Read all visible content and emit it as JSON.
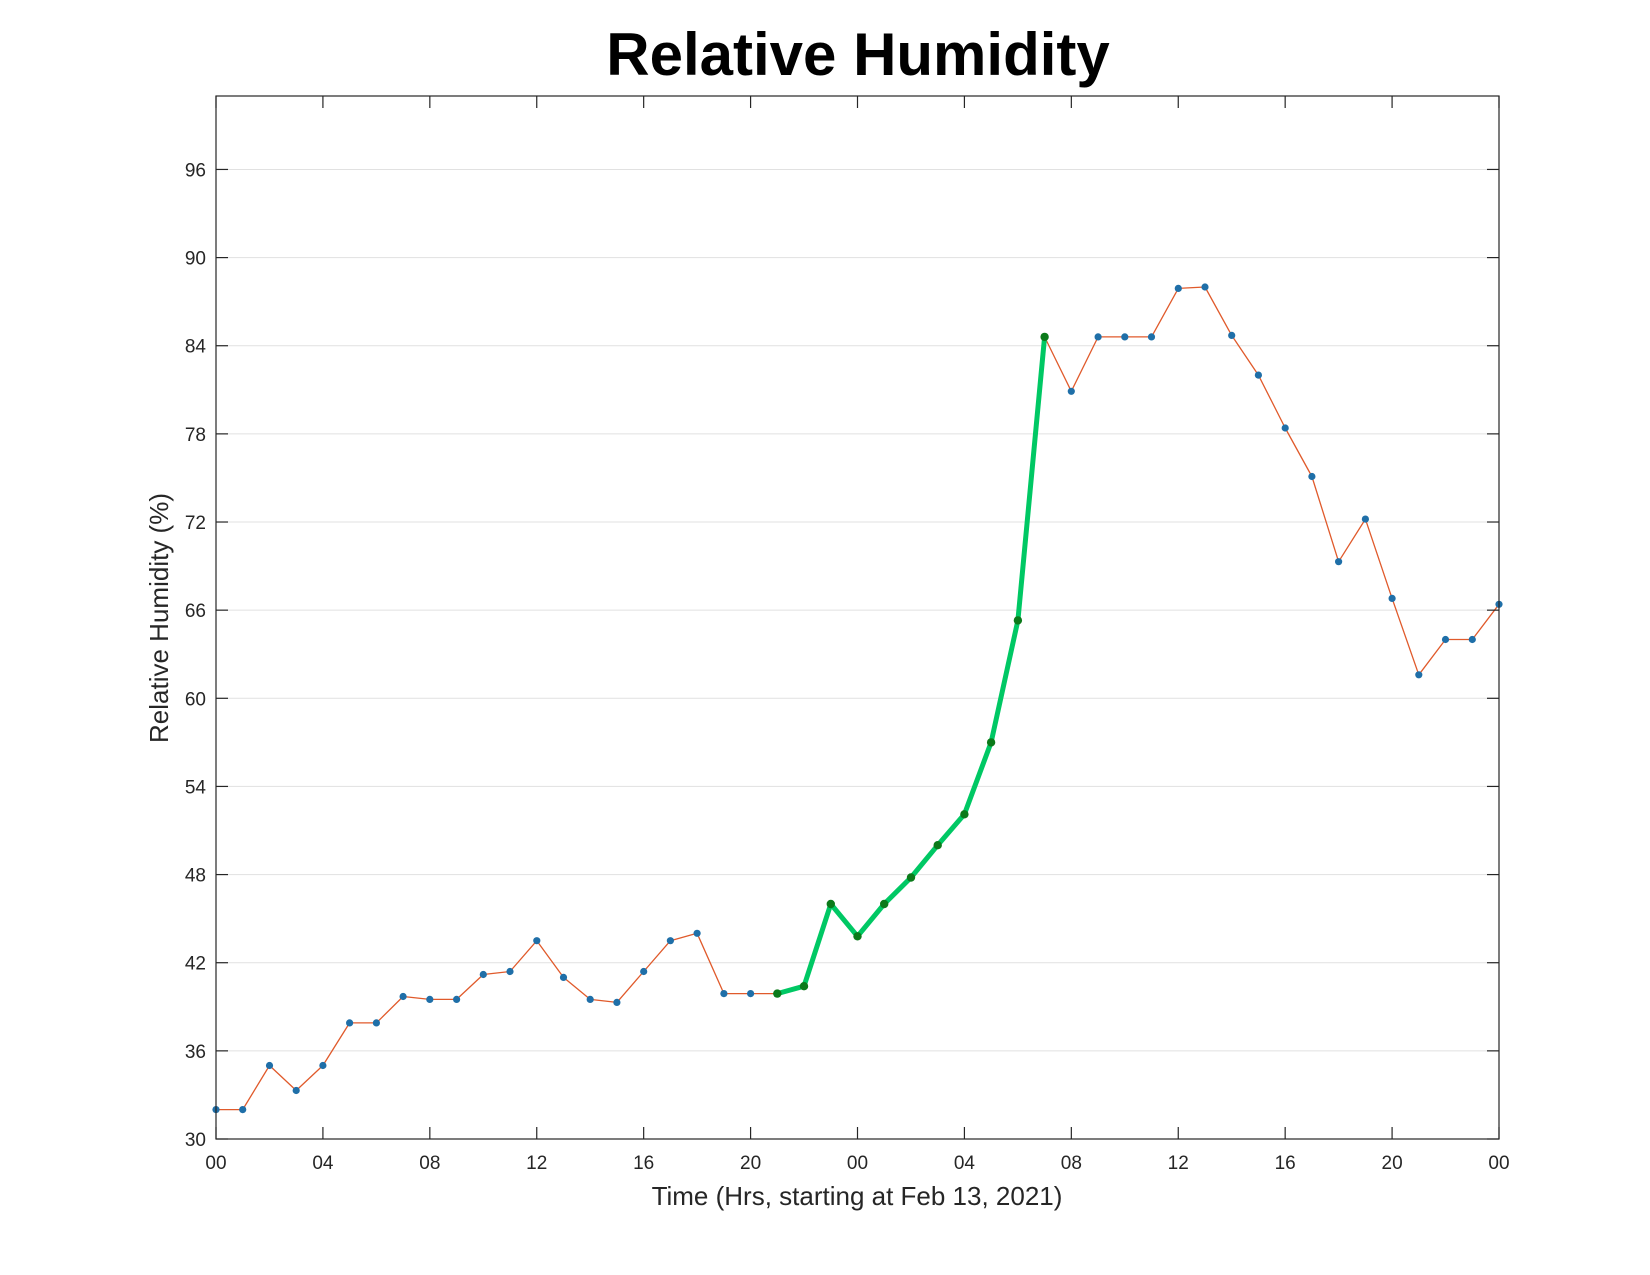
{
  "chart_data": {
    "type": "line",
    "title": "Relative Humidity",
    "xlabel": "Time (Hrs, starting at Feb 13, 2021)",
    "ylabel": "Relative Humidity (%)",
    "xlim": [
      0,
      48
    ],
    "ylim": [
      30,
      101
    ],
    "grid": "horizontal",
    "x_ticks": [
      0,
      4,
      8,
      12,
      16,
      20,
      24,
      28,
      32,
      36,
      40,
      44,
      48
    ],
    "x_tick_labels": [
      "00",
      "04",
      "08",
      "12",
      "16",
      "20",
      "00",
      "04",
      "08",
      "12",
      "16",
      "20",
      "00"
    ],
    "y_ticks": [
      30,
      36,
      42,
      48,
      54,
      60,
      66,
      72,
      78,
      84,
      90,
      96
    ],
    "y_tick_labels": [
      "30",
      "36",
      "42",
      "48",
      "54",
      "60",
      "66",
      "72",
      "78",
      "84",
      "90",
      "96"
    ],
    "series": [
      {
        "color": "#e05a2b",
        "marker_color": "#1f6fa8",
        "x": [
          0,
          1,
          2,
          3,
          4,
          5,
          6,
          7,
          8,
          9,
          10,
          11,
          12,
          13,
          14,
          15,
          16,
          17,
          18,
          19,
          20,
          21,
          22,
          23,
          24,
          25,
          26,
          27,
          28,
          29,
          30,
          31,
          32,
          33,
          34,
          35,
          36,
          37,
          38,
          39,
          40,
          41,
          42,
          43,
          44,
          45,
          46,
          47,
          48
        ],
        "values": [
          32.0,
          32.0,
          35.0,
          33.3,
          35.0,
          37.9,
          37.9,
          39.7,
          39.5,
          39.5,
          41.2,
          41.4,
          43.5,
          41.0,
          39.5,
          39.3,
          41.4,
          43.5,
          44.0,
          39.9,
          39.9,
          39.9,
          40.4,
          46.0,
          43.8,
          46.0,
          47.8,
          50.0,
          52.1,
          57.0,
          65.3,
          84.6,
          80.9,
          84.6,
          84.6,
          84.6,
          87.9,
          88.0,
          84.7,
          82.0,
          78.4,
          75.1,
          69.3,
          72.2,
          66.8,
          61.6,
          64.0,
          64.0,
          66.4
        ]
      },
      {
        "color": "#00c864",
        "marker_color": "#0b7a1a",
        "x": [
          21,
          22,
          23,
          24,
          25,
          26,
          27,
          28,
          29,
          30,
          31
        ],
        "values": [
          39.9,
          40.4,
          46.0,
          43.8,
          46.0,
          47.8,
          50.0,
          52.1,
          57.0,
          65.3,
          84.6
        ]
      }
    ]
  }
}
